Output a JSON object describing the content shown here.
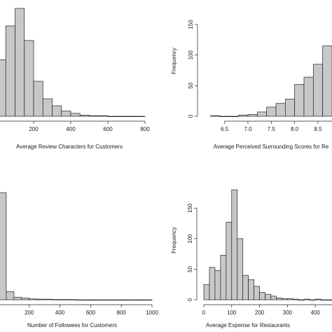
{
  "chart_data": [
    {
      "type": "bar",
      "xlabel": "Average Review Characters for Customers",
      "ylabel": "",
      "bin_width": 50,
      "bins_start": 0,
      "values": [
        97,
        155,
        185,
        130,
        60,
        30,
        18,
        9,
        5,
        2,
        1,
        1,
        0,
        0,
        0,
        0
      ],
      "xlim": [
        0,
        800
      ],
      "ylim": [
        0,
        185
      ],
      "xticks": [
        "200",
        "400",
        "600",
        "800"
      ],
      "xtick_values": [
        200,
        400,
        600,
        800
      ],
      "yticks": [],
      "grid": false,
      "fill_color": "#c8c8c8"
    },
    {
      "type": "bar",
      "xlabel": "Average Perceived Surrounding Scores for Re",
      "ylabel": "Frequency",
      "bin_width": 0.2,
      "bins_start": 6.2,
      "values": [
        1,
        0,
        0,
        2,
        3,
        7,
        15,
        21,
        28,
        52,
        64,
        85,
        115
      ],
      "xlim": [
        6.1,
        8.8
      ],
      "ylim": [
        0,
        150
      ],
      "xticks": [
        "6.5",
        "7.0",
        "7.5",
        "8.0",
        "8.5"
      ],
      "xtick_values": [
        6.5,
        7.0,
        7.5,
        8.0,
        8.5
      ],
      "yticks": [
        "0",
        "50",
        "100",
        "150"
      ],
      "ytick_values": [
        0,
        50,
        100,
        150
      ],
      "grid": false,
      "fill_color": "#c8c8c8"
    },
    {
      "type": "bar",
      "xlabel": "Number of Followees for Customers",
      "ylabel": "",
      "bin_width": 50,
      "bins_start": 0,
      "values": [
        370,
        28,
        9,
        6,
        3,
        2,
        2,
        1,
        1,
        1,
        0,
        0,
        0,
        0,
        0,
        0,
        0,
        0,
        0,
        0
      ],
      "xlim": [
        0,
        1000
      ],
      "ylim": [
        0,
        370
      ],
      "xticks": [
        "200",
        "400",
        "600",
        "800",
        "1000"
      ],
      "xtick_values": [
        200,
        400,
        600,
        800,
        1000
      ],
      "yticks": [],
      "grid": false,
      "fill_color": "#c8c8c8"
    },
    {
      "type": "bar",
      "xlabel": "Average Expense for Restaurants",
      "ylabel": "Frequency",
      "bin_width": 20,
      "bins_start": 0,
      "values": [
        25,
        53,
        48,
        73,
        127,
        180,
        100,
        40,
        33,
        22,
        12,
        9,
        6,
        3,
        2,
        2,
        1,
        0,
        1,
        0,
        1,
        0,
        0
      ],
      "xlim": [
        0,
        460
      ],
      "ylim": [
        0,
        180
      ],
      "xticks": [
        "0",
        "100",
        "200",
        "300",
        "400"
      ],
      "xtick_values": [
        0,
        100,
        200,
        300,
        400
      ],
      "yticks": [
        "0",
        "50",
        "100",
        "150"
      ],
      "ytick_values": [
        0,
        50,
        100,
        150
      ],
      "grid": false,
      "fill_color": "#c8c8c8"
    }
  ]
}
